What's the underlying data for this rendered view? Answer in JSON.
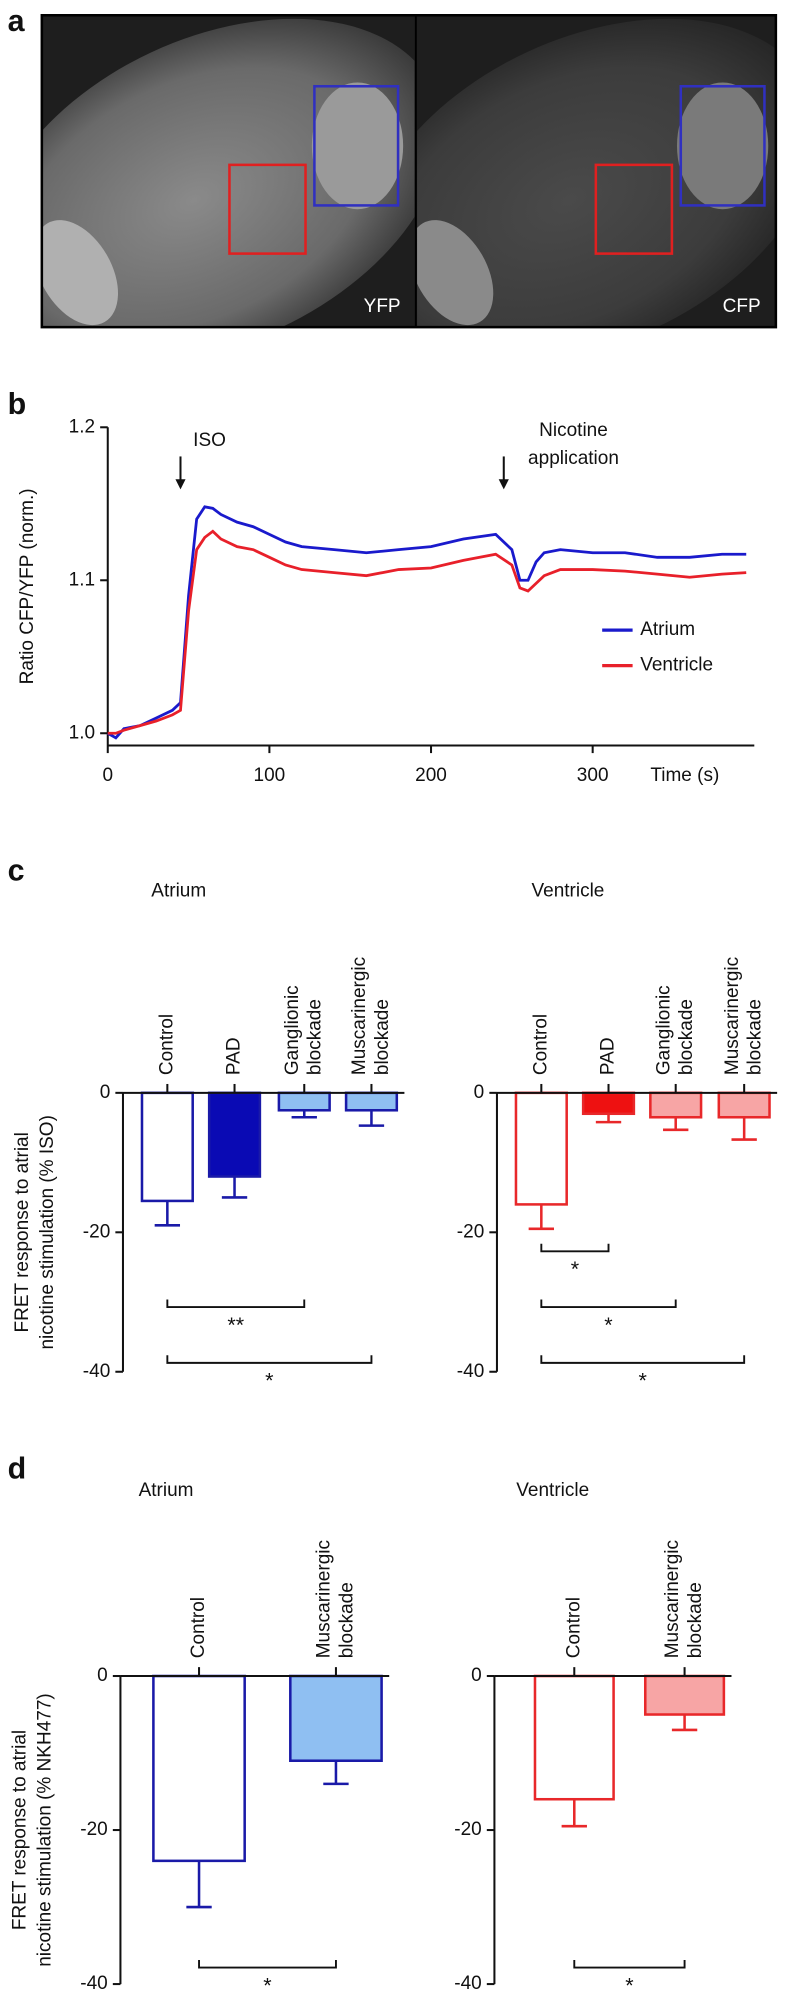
{
  "panel_labels": [
    "a",
    "b",
    "c",
    "d"
  ],
  "image_panel": {
    "labels": [
      "YFP",
      "CFP"
    ]
  },
  "chart_data": [
    {
      "type": "line",
      "y_label": "Ratio CFP/YFP (norm.)",
      "x_label": "Time (s)",
      "x": [
        0,
        5,
        10,
        20,
        30,
        40,
        45,
        50,
        55,
        60,
        65,
        70,
        80,
        90,
        100,
        110,
        120,
        140,
        160,
        180,
        200,
        220,
        240,
        250,
        255,
        260,
        265,
        270,
        280,
        300,
        320,
        340,
        360,
        380,
        395
      ],
      "series": [
        {
          "name": "Atrium",
          "color": "#1a1acc",
          "values": [
            1.0,
            0.997,
            1.003,
            1.005,
            1.01,
            1.015,
            1.02,
            1.09,
            1.14,
            1.148,
            1.147,
            1.143,
            1.138,
            1.135,
            1.13,
            1.125,
            1.122,
            1.12,
            1.118,
            1.12,
            1.122,
            1.127,
            1.13,
            1.12,
            1.1,
            1.1,
            1.112,
            1.118,
            1.12,
            1.118,
            1.118,
            1.115,
            1.115,
            1.117,
            1.117
          ]
        },
        {
          "name": "Ventricle",
          "color": "#e8202a",
          "values": [
            1.0,
            1.0,
            1.002,
            1.005,
            1.008,
            1.012,
            1.015,
            1.08,
            1.12,
            1.128,
            1.132,
            1.127,
            1.122,
            1.12,
            1.115,
            1.11,
            1.107,
            1.105,
            1.103,
            1.107,
            1.108,
            1.113,
            1.117,
            1.11,
            1.095,
            1.093,
            1.098,
            1.103,
            1.107,
            1.107,
            1.106,
            1.104,
            1.102,
            1.104,
            1.105
          ]
        }
      ],
      "xlim": [
        0,
        400
      ],
      "xticks": [
        0,
        100,
        200,
        300
      ],
      "ylim": [
        0.992,
        1.2
      ],
      "yticks": [
        {
          "value": 1,
          "label": "1.0"
        },
        1.1,
        1.2
      ],
      "annotations": [
        {
          "text": [
            "ISO"
          ],
          "x": 45
        },
        {
          "text": [
            "Nicotine",
            "application"
          ],
          "x": 245
        }
      ],
      "legend": "right"
    },
    {
      "type": "bar",
      "title": "Atrium",
      "y_label": [
        "FRET response to atrial",
        "nicotine stimulation (% ISO)"
      ],
      "categories": [
        [
          "Control"
        ],
        [
          "PAD"
        ],
        [
          "Ganglionic",
          "blockade"
        ],
        [
          "Muscarinergic",
          "blockade"
        ]
      ],
      "values": [
        -15.5,
        -12,
        -2.5,
        -2.5
      ],
      "errors": [
        3.5,
        3,
        1,
        2.2
      ],
      "colors": [
        "#ffffff",
        "#0a0ab4",
        "#8fbff2",
        "#8fbff2"
      ],
      "edge_color": "#1a1aa8",
      "ylim": [
        -40,
        0
      ],
      "yticks": [
        -40,
        -20,
        0
      ],
      "brackets": [
        {
          "from": 0,
          "to": 2,
          "label": "**"
        },
        {
          "from": 0,
          "to": 3,
          "label": "*"
        }
      ]
    },
    {
      "type": "bar",
      "title": "Ventricle",
      "categories": [
        [
          "Control"
        ],
        [
          "PAD"
        ],
        [
          "Ganglionic",
          "blockade"
        ],
        [
          "Muscarinergic",
          "blockade"
        ]
      ],
      "values": [
        -16,
        -3,
        -3.5,
        -3.5
      ],
      "errors": [
        3.5,
        1.2,
        1.8,
        3.2
      ],
      "colors": [
        "#ffffff",
        "#ee1111",
        "#f7a5a5",
        "#f7a5a5"
      ],
      "edge_color": "#e8282a",
      "ylim": [
        -40,
        0
      ],
      "yticks": [
        -40,
        -20,
        0
      ],
      "brackets": [
        {
          "from": 0,
          "to": 1,
          "label": "*"
        },
        {
          "from": 0,
          "to": 2,
          "label": "*"
        },
        {
          "from": 0,
          "to": 3,
          "label": "*"
        }
      ]
    },
    {
      "type": "bar",
      "title": "Atrium",
      "y_label": [
        "FRET response to atrial",
        "nicotine stimulation (% NKH477)"
      ],
      "categories": [
        [
          "Control"
        ],
        [
          "Muscarinergic",
          "blockade"
        ]
      ],
      "values": [
        -24,
        -11
      ],
      "errors": [
        6,
        3
      ],
      "colors": [
        "#ffffff",
        "#8fbff2"
      ],
      "edge_color": "#1a1aa8",
      "ylim": [
        -40,
        0
      ],
      "yticks": [
        -40,
        -20,
        0
      ],
      "brackets": [
        {
          "from": 0,
          "to": 1,
          "label": "*"
        }
      ]
    },
    {
      "type": "bar",
      "title": "Ventricle",
      "categories": [
        [
          "Control"
        ],
        [
          "Muscarinergic",
          "blockade"
        ]
      ],
      "values": [
        -16,
        -5
      ],
      "errors": [
        3.5,
        2
      ],
      "colors": [
        "#ffffff",
        "#f7a5a5"
      ],
      "edge_color": "#e8282a",
      "ylim": [
        -40,
        0
      ],
      "yticks": [
        -40,
        -20,
        0
      ],
      "brackets": [
        {
          "from": 0,
          "to": 1,
          "label": "*"
        }
      ]
    }
  ]
}
